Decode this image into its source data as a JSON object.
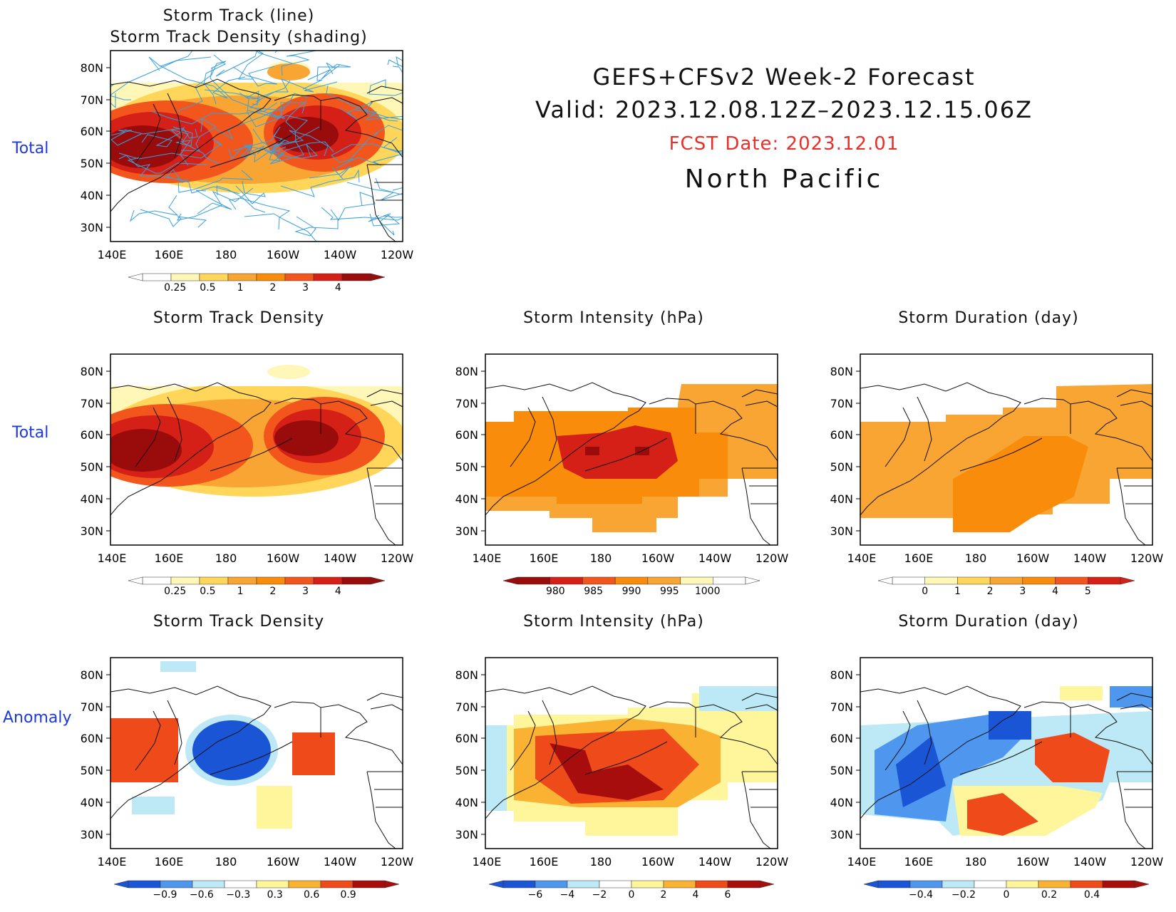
{
  "header": {
    "title_line1": "GEFS+CFSv2 Week-2 Forecast",
    "title_line2": "Valid: 2023.12.08.12Z–2023.12.15.06Z",
    "fcst_date": "FCST Date: 2023.12.01",
    "region": "North Pacific"
  },
  "row_labels": {
    "top": "Total",
    "middle": "Total",
    "bottom": "Anomaly"
  },
  "axes": {
    "lat_ticks": [
      "80N",
      "70N",
      "60N",
      "50N",
      "40N",
      "30N"
    ],
    "lon_ticks": [
      "140E",
      "160E",
      "180",
      "160W",
      "140W",
      "120W"
    ]
  },
  "colors": {
    "label_blue": "#1e3ad6",
    "fcst_red": "#e8302a",
    "track_line": "#3aa0dc",
    "density_scale": [
      "#fff7b8",
      "#ffd65a",
      "#f9a533",
      "#f98c0a",
      "#f2561d",
      "#d42016",
      "#9a0b0b"
    ],
    "anomaly_scale": [
      "#1a55d6",
      "#4e96ee",
      "#bde9f6",
      "#ffffff",
      "#fff59a",
      "#f9b232",
      "#ef4a1a",
      "#a80d0d"
    ]
  },
  "panels": [
    {
      "id": "track",
      "title_line1": "Storm Track (line)",
      "title_line2": "Storm Track Density (shading)",
      "cbar_labels": [
        "0.25",
        "0.5",
        "1",
        "2",
        "3",
        "4"
      ]
    },
    {
      "id": "density_total",
      "title_line1": "Storm Track Density",
      "cbar_labels": [
        "0.25",
        "0.5",
        "1",
        "2",
        "3",
        "4"
      ]
    },
    {
      "id": "intensity_total",
      "title_line1": "Storm Intensity (hPa)",
      "cbar_labels": [
        "980",
        "985",
        "990",
        "995",
        "1000"
      ]
    },
    {
      "id": "duration_total",
      "title_line1": "Storm Duration (day)",
      "cbar_labels": [
        "0",
        "1",
        "2",
        "3",
        "4",
        "5"
      ]
    },
    {
      "id": "density_anom",
      "title_line1": "Storm Track Density",
      "cbar_labels": [
        "−0.9",
        "−0.6",
        "−0.3",
        "0.3",
        "0.6",
        "0.9"
      ]
    },
    {
      "id": "intensity_anom",
      "title_line1": "Storm Intensity (hPa)",
      "cbar_labels": [
        "−6",
        "−4",
        "−2",
        "0",
        "2",
        "4",
        "6"
      ]
    },
    {
      "id": "duration_anom",
      "title_line1": "Storm Duration (day)",
      "cbar_labels": [
        "−0.4",
        "−0.2",
        "0",
        "0.2",
        "0.4"
      ]
    }
  ]
}
